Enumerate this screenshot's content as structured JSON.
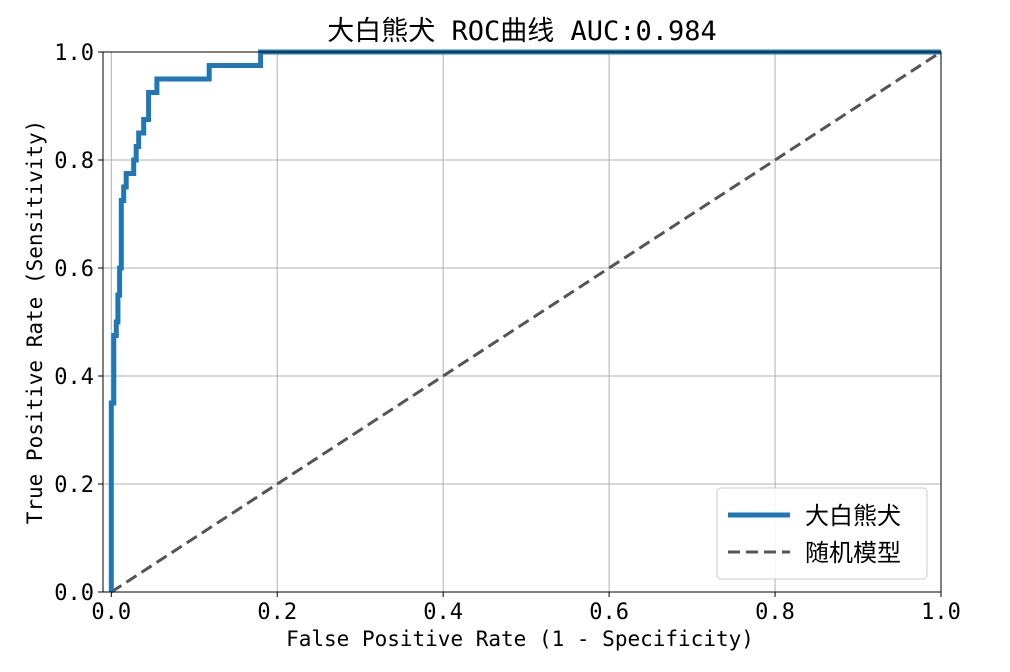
{
  "chart_data": {
    "type": "line",
    "title": "大白熊犬 ROC曲线  AUC:0.984",
    "xlabel": "False Positive Rate (1 - Specificity)",
    "ylabel": "True Positive Rate (Sensitivity)",
    "xlim": [
      -0.01,
      1.0
    ],
    "ylim": [
      0.0,
      1.0
    ],
    "xticks": [
      "0.0",
      "0.2",
      "0.4",
      "0.6",
      "0.8",
      "1.0"
    ],
    "yticks": [
      "0.0",
      "0.2",
      "0.4",
      "0.6",
      "0.8",
      "1.0"
    ],
    "grid": true,
    "legend_position": "bottom-right",
    "series": [
      {
        "name": "大白熊犬",
        "color": "#1f77b4",
        "style": "solid",
        "points": [
          [
            0.0,
            0.0
          ],
          [
            0.0,
            0.35
          ],
          [
            0.003,
            0.35
          ],
          [
            0.003,
            0.475
          ],
          [
            0.006,
            0.475
          ],
          [
            0.006,
            0.5
          ],
          [
            0.008,
            0.5
          ],
          [
            0.008,
            0.55
          ],
          [
            0.01,
            0.55
          ],
          [
            0.01,
            0.6
          ],
          [
            0.012,
            0.6
          ],
          [
            0.012,
            0.725
          ],
          [
            0.015,
            0.725
          ],
          [
            0.015,
            0.75
          ],
          [
            0.018,
            0.75
          ],
          [
            0.018,
            0.775
          ],
          [
            0.027,
            0.775
          ],
          [
            0.027,
            0.8
          ],
          [
            0.03,
            0.8
          ],
          [
            0.03,
            0.825
          ],
          [
            0.033,
            0.825
          ],
          [
            0.033,
            0.85
          ],
          [
            0.039,
            0.85
          ],
          [
            0.039,
            0.875
          ],
          [
            0.045,
            0.875
          ],
          [
            0.045,
            0.925
          ],
          [
            0.055,
            0.925
          ],
          [
            0.055,
            0.95
          ],
          [
            0.118,
            0.95
          ],
          [
            0.118,
            0.975
          ],
          [
            0.18,
            0.975
          ],
          [
            0.18,
            1.0
          ],
          [
            1.0,
            1.0
          ]
        ]
      },
      {
        "name": "随机模型",
        "color": "#555555",
        "style": "dashed",
        "points": [
          [
            0.0,
            0.0
          ],
          [
            1.0,
            1.0
          ]
        ]
      }
    ]
  }
}
